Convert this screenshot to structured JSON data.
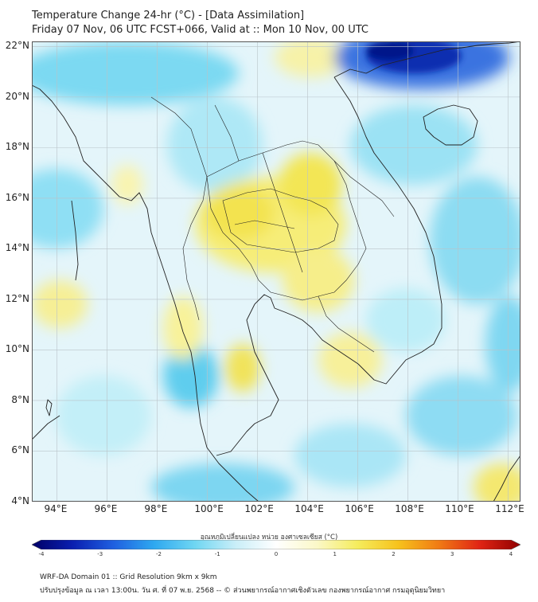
{
  "header": {
    "title": "Temperature Change 24-hr (°C) - [Data Assimilation]",
    "subtitle": "Friday 07 Nov, 06 UTC FCST+066, Valid at :: Mon 10 Nov, 00 UTC"
  },
  "map": {
    "lon_range": [
      93,
      112.5
    ],
    "lat_range": [
      4,
      22.2
    ],
    "lon_ticks": [
      "94°E",
      "96°E",
      "98°E",
      "100°E",
      "102°E",
      "104°E",
      "106°E",
      "108°E",
      "110°E",
      "112°E"
    ],
    "lat_ticks": [
      "22°N",
      "20°N",
      "18°N",
      "16°N",
      "14°N",
      "12°N",
      "10°N",
      "8°N",
      "6°N",
      "4°N"
    ],
    "ocean_color": "#e4f5fa",
    "coast_color": "#222222"
  },
  "colorbar": {
    "title": "อุณหภูมิเปลี่ยนแปลง หน่วย องศาเซลเซียส (°C)",
    "min": -4,
    "max": 4,
    "ticks": [
      "-4",
      "-3",
      "-2",
      "-1",
      "0",
      "1",
      "2",
      "3",
      "4"
    ],
    "colors": [
      "#000066",
      "#0a1fb0",
      "#1f5fe0",
      "#2ea8f0",
      "#6fd6f2",
      "#c9eef8",
      "#ffffff",
      "#fbf8c8",
      "#f5ec5c",
      "#f7c21c",
      "#f07a14",
      "#e02414",
      "#900000"
    ]
  },
  "footer": {
    "line1": "WRF-DA Domain 01 :: Grid Resolution 9km x 9km",
    "line2": "ปรับปรุงข้อมูล ณ เวลา 13:00น. วัน ศ. ที่ 07 พ.ย. 2568 -- © ส่วนพยากรณ์อากาศเชิงตัวเลข กองพยากรณ์อากาศ กรมอุตุนิยมวิทยา"
  }
}
